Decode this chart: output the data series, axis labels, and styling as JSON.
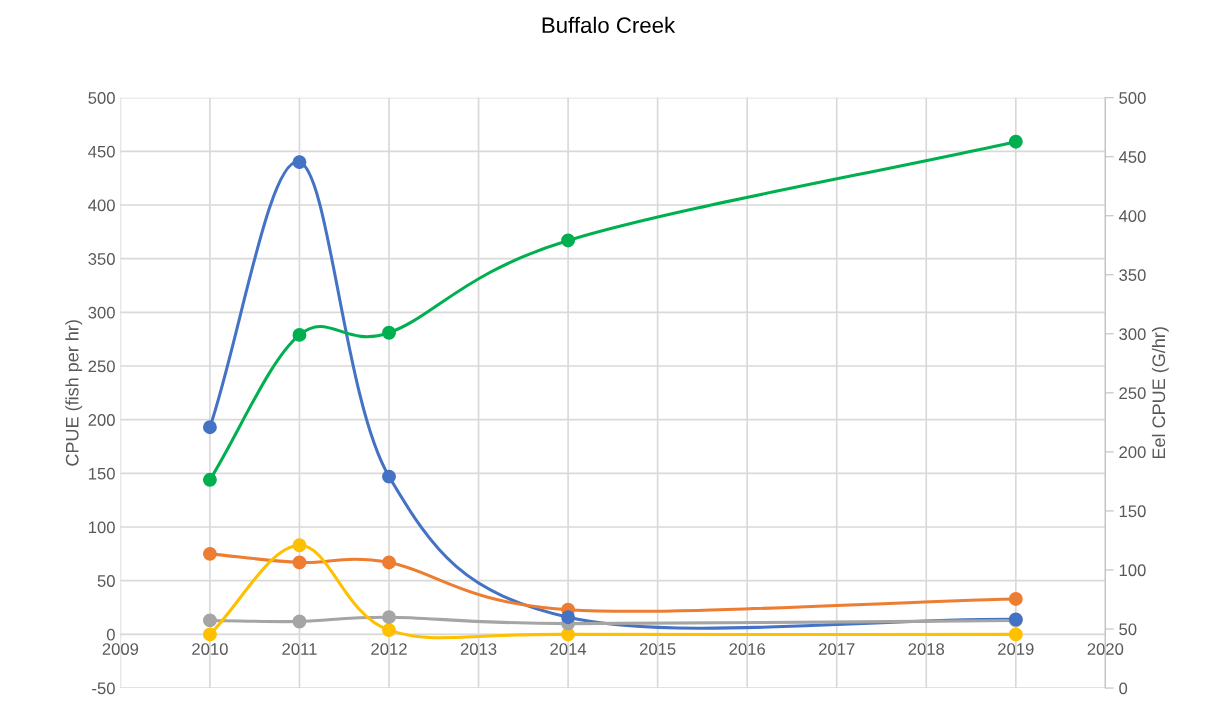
{
  "chart_data": {
    "type": "line",
    "title": "Buffalo Creek",
    "ylabel": "CPUE (fish per hr)",
    "y2label": "Eel CPUE (G/hr)",
    "x": [
      2010,
      2011,
      2012,
      2014,
      2019
    ],
    "series": [
      {
        "color": "#4472c4",
        "values": [
          193,
          440,
          147,
          16,
          14
        ]
      },
      {
        "color": "#ed7d31",
        "values": [
          75,
          67,
          67,
          23,
          33
        ]
      },
      {
        "color": "#a5a5a5",
        "values": [
          13,
          12,
          16,
          10,
          13
        ]
      },
      {
        "color": "#ffc000",
        "values": [
          0,
          83,
          4,
          0,
          0
        ]
      },
      {
        "color": "#00b050",
        "values": [
          144,
          279,
          281,
          367,
          459
        ]
      }
    ],
    "xlim": [
      2009,
      2020
    ],
    "xticks": [
      2009,
      2010,
      2011,
      2012,
      2013,
      2014,
      2015,
      2016,
      2017,
      2018,
      2019,
      2020
    ],
    "ylim": [
      -50,
      500
    ],
    "yticks": [
      -50,
      0,
      50,
      100,
      150,
      200,
      250,
      300,
      350,
      400,
      450,
      500
    ],
    "y2lim": [
      0,
      500
    ],
    "y2ticks": [
      0,
      50,
      100,
      150,
      200,
      250,
      300,
      350,
      400,
      450,
      500
    ],
    "grid": true,
    "marker": "circle",
    "line_style": "solid",
    "legend": false
  }
}
